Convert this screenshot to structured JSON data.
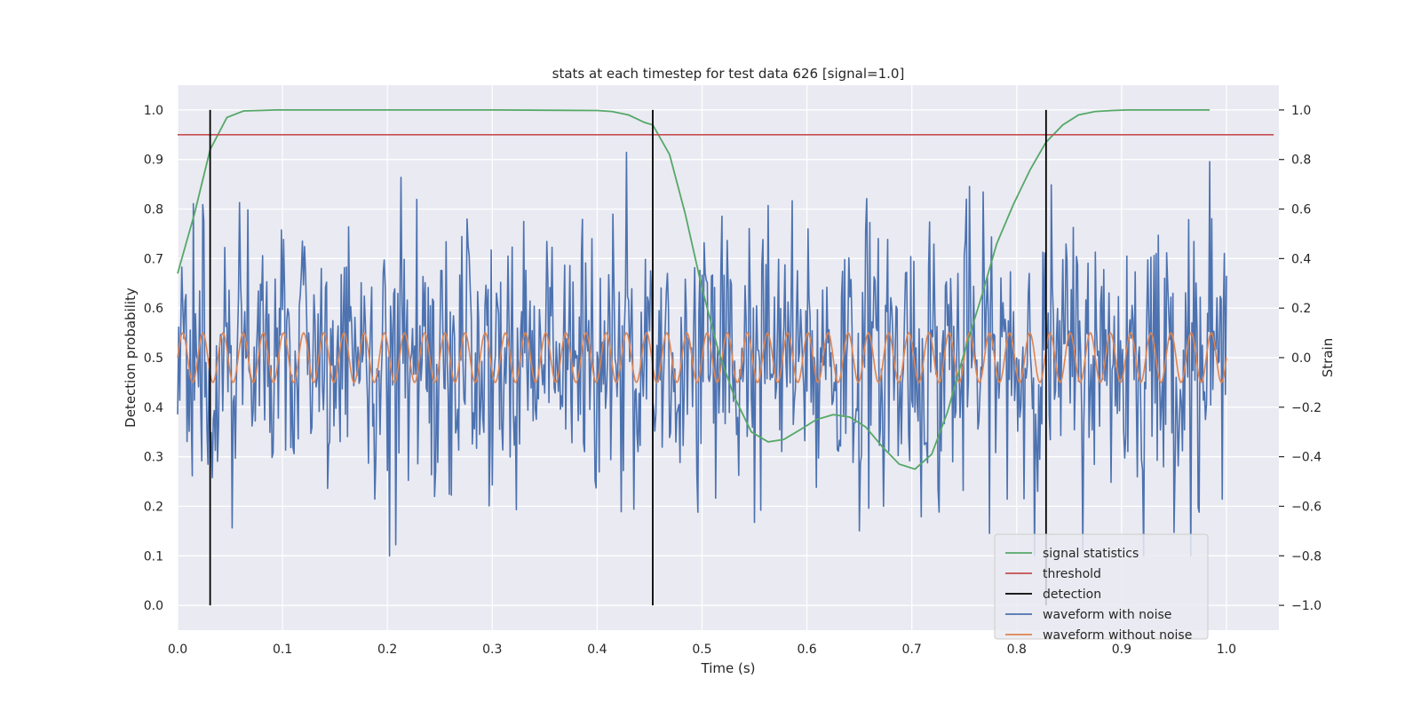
{
  "chart_data": {
    "type": "line",
    "title": "stats at each timestep for test data 626 [signal=1.0]",
    "xlabel": "Time (s)",
    "ylabel": "Detection probability",
    "y2label": "Strain",
    "xlim": [
      0.0,
      1.05
    ],
    "ylim": [
      -0.05,
      1.05
    ],
    "y2lim": [
      -1.1,
      1.1
    ],
    "xticks": [
      "0.0",
      "0.1",
      "0.2",
      "0.3",
      "0.4",
      "0.5",
      "0.6",
      "0.7",
      "0.8",
      "0.9",
      "1.0"
    ],
    "yticks": [
      "0.0",
      "0.1",
      "0.2",
      "0.3",
      "0.4",
      "0.5",
      "0.6",
      "0.7",
      "0.8",
      "0.9",
      "1.0"
    ],
    "y2ticks": [
      "−1.0",
      "−0.8",
      "−0.6",
      "−0.4",
      "−0.2",
      "0.0",
      "0.2",
      "0.4",
      "0.6",
      "0.8",
      "1.0"
    ],
    "grid": true,
    "legend_position": "lower-right",
    "signal_statistics": {
      "x": [
        0.0,
        0.016,
        0.031,
        0.047,
        0.063,
        0.078,
        0.094,
        0.109,
        0.125,
        0.2,
        0.3,
        0.4,
        0.414,
        0.43,
        0.445,
        0.453,
        0.469,
        0.484,
        0.5,
        0.516,
        0.531,
        0.547,
        0.563,
        0.578,
        0.594,
        0.609,
        0.625,
        0.641,
        0.656,
        0.672,
        0.688,
        0.703,
        0.719,
        0.734,
        0.75,
        0.766,
        0.781,
        0.797,
        0.813,
        0.828,
        0.844,
        0.859,
        0.875,
        0.891,
        0.906,
        0.922,
        0.984
      ],
      "y": [
        0.67,
        0.79,
        0.92,
        0.985,
        0.998,
        0.999,
        1.0,
        1.0,
        1.0,
        1.0,
        1.0,
        0.999,
        0.997,
        0.99,
        0.975,
        0.97,
        0.91,
        0.79,
        0.64,
        0.51,
        0.42,
        0.35,
        0.33,
        0.335,
        0.355,
        0.375,
        0.385,
        0.38,
        0.36,
        0.32,
        0.285,
        0.275,
        0.305,
        0.39,
        0.51,
        0.62,
        0.73,
        0.81,
        0.88,
        0.935,
        0.97,
        0.99,
        0.997,
        0.999,
        1.0,
        1.0,
        1.0
      ]
    },
    "threshold": {
      "value": 0.95,
      "xrange": [
        0.0,
        1.045
      ]
    },
    "detections": [
      0.031,
      0.453,
      0.828
    ],
    "waveform_without_noise": {
      "amplitude": 0.1,
      "cycles_per_second": 52,
      "x_range": [
        0.0,
        1.0
      ]
    },
    "waveform_with_noise": {
      "approx_range": [
        -0.8,
        1.0
      ],
      "x_range": [
        0.0,
        1.0
      ]
    },
    "legend": [
      "signal statistics",
      "threshold",
      "detection",
      "waveform with noise",
      "waveform without noise"
    ],
    "colors": {
      "signal_statistics": "#55a868",
      "threshold": "#c44e52",
      "detection": "#000000",
      "waveform_with_noise": "#4c72b0",
      "waveform_without_noise": "#dd8452",
      "plot_background": "#eaeaf2",
      "grid": "#ffffff"
    }
  }
}
